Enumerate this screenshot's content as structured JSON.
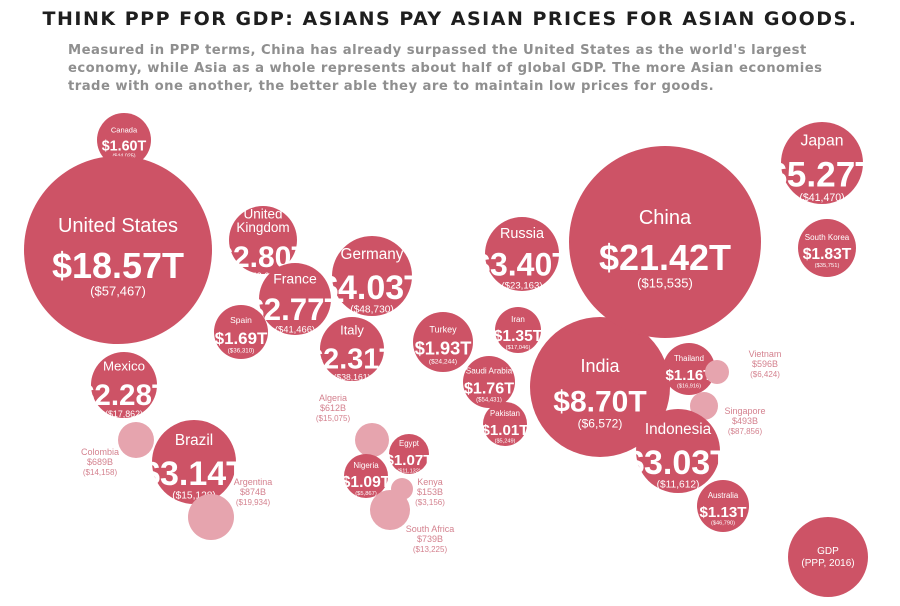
{
  "header": {
    "title": "THINK PPP FOR GDP: ASIANS PAY ASIAN PRICES FOR ASIAN GOODS.",
    "subtitle_lines": [
      "Measured in PPP terms, China has already surpassed the United States as the world's largest",
      "economy, while Asia as a whole represents about half of global GDP. The more Asian economies",
      "trade with one another, the better able they are to maintain low prices for goods."
    ]
  },
  "colors": {
    "bubble": "#cd5366",
    "bubble_light": "#e6a4ae",
    "label_outside": "#d4828f"
  },
  "chart_data": {
    "type": "bubble",
    "measure": "GDP (PPP, 2016)",
    "value_unit": "USD",
    "countries": [
      {
        "name": "Canada",
        "gdp": "$1.60T",
        "gdp_per_capita": "($44,025)",
        "gdp_trillions": 1.6
      },
      {
        "name": "United States",
        "gdp": "$18.57T",
        "gdp_per_capita": "($57,467)",
        "gdp_trillions": 18.57
      },
      {
        "name": "United Kingdom",
        "gdp": "$2.80T",
        "gdp_per_capita": "($42,609)",
        "gdp_trillions": 2.8
      },
      {
        "name": "Germany",
        "gdp": "$4.03T",
        "gdp_per_capita": "($48,730)",
        "gdp_trillions": 4.03
      },
      {
        "name": "France",
        "gdp": "$2.77T",
        "gdp_per_capita": "($41,466)",
        "gdp_trillions": 2.77
      },
      {
        "name": "Spain",
        "gdp": "$1.69T",
        "gdp_per_capita": "($36,310)",
        "gdp_trillions": 1.69
      },
      {
        "name": "Italy",
        "gdp": "$2.31T",
        "gdp_per_capita": "($38,161)",
        "gdp_trillions": 2.31
      },
      {
        "name": "Mexico",
        "gdp": "$2.28T",
        "gdp_per_capita": "($17,862)",
        "gdp_trillions": 2.28
      },
      {
        "name": "Brazil",
        "gdp": "$3.14T",
        "gdp_per_capita": "($15,128)",
        "gdp_trillions": 3.14
      },
      {
        "name": "Colombia",
        "gdp": "$689B",
        "gdp_per_capita": "($14,158)",
        "gdp_trillions": 0.689
      },
      {
        "name": "Argentina",
        "gdp": "$874B",
        "gdp_per_capita": "($19,934)",
        "gdp_trillions": 0.874
      },
      {
        "name": "Algeria",
        "gdp": "$612B",
        "gdp_per_capita": "($15,075)",
        "gdp_trillions": 0.612
      },
      {
        "name": "Egypt",
        "gdp": "$1.07T",
        "gdp_per_capita": "($11,132)",
        "gdp_trillions": 1.07
      },
      {
        "name": "Nigeria",
        "gdp": "$1.09T",
        "gdp_per_capita": "($5,867)",
        "gdp_trillions": 1.09
      },
      {
        "name": "Kenya",
        "gdp": "$153B",
        "gdp_per_capita": "($3,156)",
        "gdp_trillions": 0.153
      },
      {
        "name": "South Africa",
        "gdp": "$739B",
        "gdp_per_capita": "($13,225)",
        "gdp_trillions": 0.739
      },
      {
        "name": "Russia",
        "gdp": "$3.40T",
        "gdp_per_capita": "($23,163)",
        "gdp_trillions": 3.4
      },
      {
        "name": "Turkey",
        "gdp": "$1.93T",
        "gdp_per_capita": "($24,244)",
        "gdp_trillions": 1.93
      },
      {
        "name": "Iran",
        "gdp": "$1.35T",
        "gdp_per_capita": "($17,046)",
        "gdp_trillions": 1.35
      },
      {
        "name": "Saudi Arabia",
        "gdp": "$1.76T",
        "gdp_per_capita": "($54,431)",
        "gdp_trillions": 1.76
      },
      {
        "name": "Pakistan",
        "gdp": "$1.01T",
        "gdp_per_capita": "($5,249)",
        "gdp_trillions": 1.01
      },
      {
        "name": "India",
        "gdp": "$8.70T",
        "gdp_per_capita": "($6,572)",
        "gdp_trillions": 8.7
      },
      {
        "name": "China",
        "gdp": "$21.42T",
        "gdp_per_capita": "($15,535)",
        "gdp_trillions": 21.42
      },
      {
        "name": "Japan",
        "gdp": "$5.27T",
        "gdp_per_capita": "($41,470)",
        "gdp_trillions": 5.27
      },
      {
        "name": "South Korea",
        "gdp": "$1.83T",
        "gdp_per_capita": "($35,751)",
        "gdp_trillions": 1.83
      },
      {
        "name": "Thailand",
        "gdp": "$1.16T",
        "gdp_per_capita": "($16,916)",
        "gdp_trillions": 1.16
      },
      {
        "name": "Vietnam",
        "gdp": "$596B",
        "gdp_per_capita": "($6,424)",
        "gdp_trillions": 0.596
      },
      {
        "name": "Singapore",
        "gdp": "$493B",
        "gdp_per_capita": "($87,856)",
        "gdp_trillions": 0.493
      },
      {
        "name": "Indonesia",
        "gdp": "$3.03T",
        "gdp_per_capita": "($11,612)",
        "gdp_trillions": 3.03
      },
      {
        "name": "Australia",
        "gdp": "$1.13T",
        "gdp_per_capita": "($46,790)",
        "gdp_trillions": 1.13
      }
    ],
    "legend": {
      "label_lines": [
        "GDP",
        "(PPP, 2016)"
      ]
    }
  }
}
